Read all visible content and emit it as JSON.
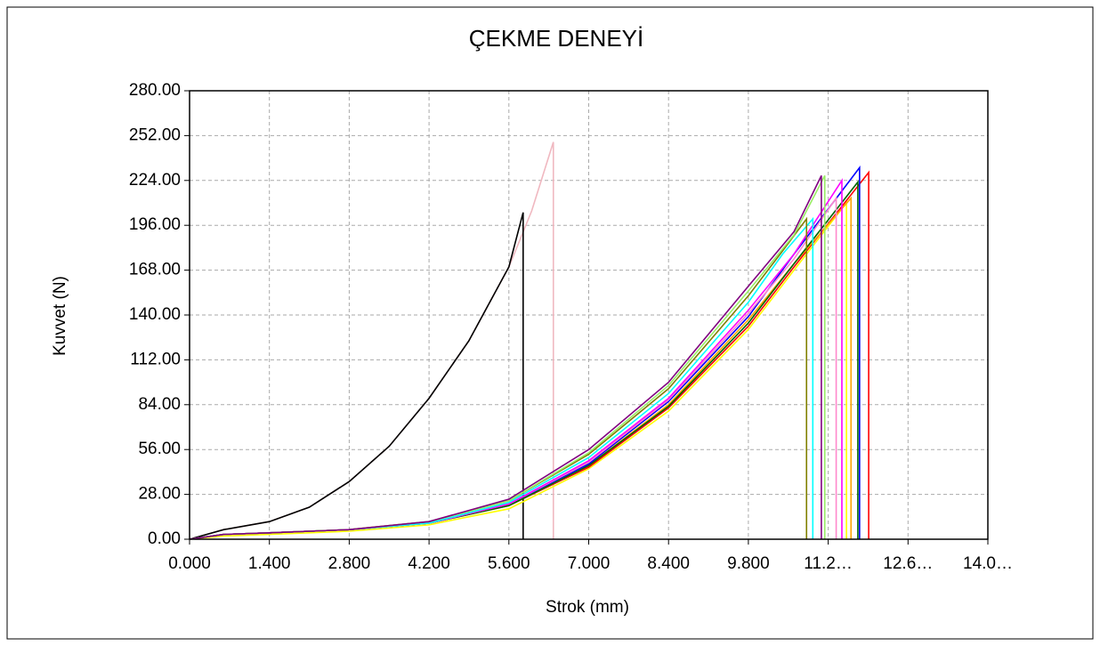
{
  "chart_data": {
    "type": "line",
    "title": "ÇEKME DENEYİ",
    "x_label": "Strok (mm)",
    "y_label": "Kuvvet (N)",
    "xlim": [
      0,
      14
    ],
    "ylim": [
      0,
      280
    ],
    "grid": true,
    "xticks": [
      {
        "value": 0,
        "label": "0.000"
      },
      {
        "value": 1.4,
        "label": "1.400"
      },
      {
        "value": 2.8,
        "label": "2.800"
      },
      {
        "value": 4.2,
        "label": "4.200"
      },
      {
        "value": 5.6,
        "label": "5.600"
      },
      {
        "value": 7,
        "label": "7.000"
      },
      {
        "value": 8.4,
        "label": "8.400"
      },
      {
        "value": 9.8,
        "label": "9.800"
      },
      {
        "value": 11.2,
        "label": "11.2…"
      },
      {
        "value": 12.6,
        "label": "12.6…"
      },
      {
        "value": 14,
        "label": "14.0…"
      }
    ],
    "yticks": [
      {
        "value": 0,
        "label": "0.00"
      },
      {
        "value": 28,
        "label": "28.00"
      },
      {
        "value": 56,
        "label": "56.00"
      },
      {
        "value": 84,
        "label": "84.00"
      },
      {
        "value": 112,
        "label": "112.00"
      },
      {
        "value": 140,
        "label": "140.00"
      },
      {
        "value": 168,
        "label": "168.00"
      },
      {
        "value": 196,
        "label": "196.00"
      },
      {
        "value": 224,
        "label": "224.00"
      },
      {
        "value": 252,
        "label": "252.00"
      },
      {
        "value": 280,
        "label": "280.00"
      }
    ],
    "series": [
      {
        "color": "#f0b8c0",
        "x": [
          0,
          0.6,
          1.4,
          2.1,
          2.8,
          3.5,
          4.2,
          4.9,
          5.6,
          6.0,
          6.38,
          6.38
        ],
        "values": [
          0,
          6,
          11,
          20,
          36,
          58,
          88,
          124,
          170,
          205,
          248,
          0
        ]
      },
      {
        "color": "#000000",
        "x": [
          0,
          0.6,
          1.4,
          2.1,
          2.8,
          3.5,
          4.2,
          4.9,
          5.6,
          5.85,
          5.85
        ],
        "values": [
          0,
          6,
          11,
          20,
          36,
          58,
          88,
          124,
          170,
          204,
          0
        ]
      },
      {
        "color": "#ffff00",
        "x": [
          0,
          0.6,
          1.4,
          2.8,
          4.2,
          5.6,
          7.0,
          8.4,
          9.8,
          10.6,
          11.52,
          11.52
        ],
        "values": [
          0,
          2,
          3,
          5,
          9,
          19,
          44,
          80,
          131,
          168,
          210,
          0
        ]
      },
      {
        "color": "#ff0000",
        "x": [
          0,
          0.6,
          1.4,
          2.8,
          4.2,
          5.6,
          7.0,
          8.4,
          9.8,
          10.6,
          11.91,
          11.91
        ],
        "values": [
          0,
          3,
          4,
          6,
          10,
          21,
          45,
          82,
          133,
          170,
          229,
          0
        ]
      },
      {
        "color": "#ffa500",
        "x": [
          0,
          0.6,
          1.4,
          2.8,
          4.2,
          5.6,
          7.0,
          8.4,
          9.8,
          10.6,
          11.6,
          11.6
        ],
        "values": [
          0,
          3,
          4,
          6,
          10,
          21,
          46,
          84,
          137,
          172,
          213,
          0
        ]
      },
      {
        "color": "#006400",
        "x": [
          0,
          0.6,
          1.4,
          2.8,
          4.2,
          5.6,
          7.0,
          8.4,
          9.8,
          10.6,
          11.72,
          11.72
        ],
        "values": [
          0,
          3,
          4,
          6,
          10,
          21,
          46,
          83,
          135,
          172,
          223,
          0
        ]
      },
      {
        "color": "#0000ff",
        "x": [
          0,
          0.6,
          1.4,
          2.8,
          4.2,
          5.6,
          7.0,
          8.4,
          9.8,
          10.6,
          11.75,
          11.75
        ],
        "values": [
          0,
          3,
          4,
          6,
          10,
          22,
          47,
          86,
          139,
          178,
          232,
          0
        ]
      },
      {
        "color": "#ff88cc",
        "x": [
          0,
          0.6,
          1.4,
          2.8,
          4.2,
          5.6,
          7.0,
          8.4,
          9.8,
          10.6,
          11.34,
          11.34
        ],
        "values": [
          0,
          3,
          4,
          6,
          10,
          22,
          48,
          87,
          141,
          175,
          213,
          0
        ]
      },
      {
        "color": "#ff00ff",
        "x": [
          0,
          0.6,
          1.4,
          2.8,
          4.2,
          5.6,
          7.0,
          8.4,
          9.8,
          10.6,
          11.44,
          11.44
        ],
        "values": [
          0,
          3,
          4,
          6,
          10,
          22,
          49,
          88,
          143,
          178,
          224,
          0
        ]
      },
      {
        "color": "#00ffff",
        "x": [
          0,
          0.6,
          1.4,
          2.8,
          4.2,
          5.6,
          7.0,
          8.4,
          9.8,
          10.4,
          10.93,
          10.93
        ],
        "values": [
          0,
          3,
          4,
          6,
          10,
          23,
          51,
          91,
          148,
          178,
          200,
          0
        ]
      },
      {
        "color": "#808000",
        "x": [
          0,
          0.6,
          1.4,
          2.8,
          4.2,
          5.6,
          7.0,
          8.4,
          9.8,
          10.4,
          10.82,
          10.82
        ],
        "values": [
          0,
          3,
          4,
          6,
          11,
          24,
          53,
          94,
          152,
          180,
          200,
          0
        ]
      },
      {
        "color": "#99ee66",
        "x": [
          0,
          0.6,
          1.4,
          2.8,
          4.2,
          5.6,
          7.0,
          8.4,
          9.8,
          10.6,
          11.14,
          11.14
        ],
        "values": [
          0,
          3,
          4,
          6,
          11,
          24,
          54,
          96,
          155,
          190,
          227,
          0
        ]
      },
      {
        "color": "#800080",
        "x": [
          0,
          0.6,
          1.4,
          2.8,
          4.2,
          5.6,
          7.0,
          8.4,
          9.8,
          10.6,
          11.08,
          11.08
        ],
        "values": [
          0,
          3,
          4,
          6,
          11,
          25,
          56,
          98,
          158,
          192,
          227,
          0
        ]
      }
    ]
  }
}
